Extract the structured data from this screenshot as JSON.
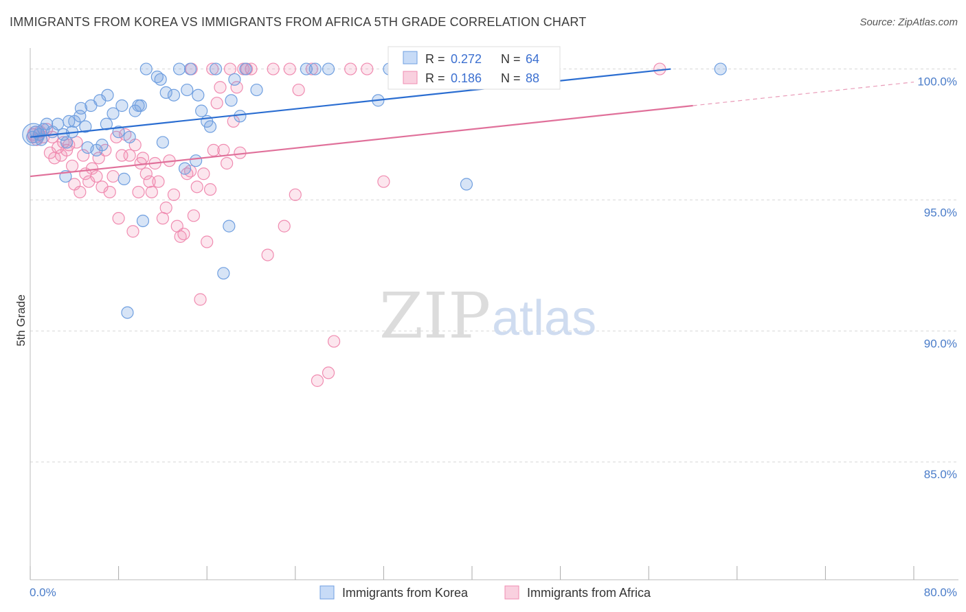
{
  "header": {
    "title": "IMMIGRANTS FROM KOREA VS IMMIGRANTS FROM AFRICA 5TH GRADE CORRELATION CHART",
    "source": "Source: ZipAtlas.com"
  },
  "watermark": {
    "zip": "ZIP",
    "atlas": "atlas"
  },
  "colors": {
    "korea": "#6f9fe0",
    "korea_line": "#2a6dd1",
    "africa": "#f08bb0",
    "africa_line": "#e0709a",
    "tick_text": "#4a7cc9",
    "grid": "#d7d7d7"
  },
  "legend_stats": [
    {
      "r_label": "R =",
      "r_value": "0.272",
      "n_label": "N =",
      "n_value": "64"
    },
    {
      "r_label": "R =",
      "r_value": "0.186",
      "n_label": "N =",
      "n_value": "88"
    }
  ],
  "chart_data": {
    "type": "scatter",
    "title": "IMMIGRANTS FROM KOREA VS IMMIGRANTS FROM AFRICA 5TH GRADE CORRELATION CHART",
    "xlabel": "",
    "ylabel": "5th Grade",
    "xlim": [
      0,
      80
    ],
    "ylim": [
      80.5,
      100.8
    ],
    "x_tick_labels": [
      "0.0%",
      "80.0%"
    ],
    "y_ticks": [
      {
        "value": 100,
        "label": "100.0%"
      },
      {
        "value": 95,
        "label": "95.0%"
      },
      {
        "value": 90,
        "label": "90.0%"
      },
      {
        "value": 85,
        "label": "85.0%"
      }
    ],
    "grid": "horizontal dashed",
    "legend_position": "bottom",
    "series": [
      {
        "name": "Immigrants from Korea",
        "r": 0.272,
        "n": 64,
        "trend": {
          "x": [
            0,
            58
          ],
          "y": [
            97.4,
            100.0
          ]
        },
        "points": [
          [
            0.2,
            97.4
          ],
          [
            0.5,
            97.6
          ],
          [
            0.8,
            97.5
          ],
          [
            1.0,
            97.3
          ],
          [
            1.2,
            97.7
          ],
          [
            1.5,
            97.9
          ],
          [
            2.0,
            97.6
          ],
          [
            2.5,
            97.9
          ],
          [
            3.0,
            97.5
          ],
          [
            3.3,
            97.2
          ],
          [
            3.5,
            98.0
          ],
          [
            3.8,
            97.6
          ],
          [
            4.0,
            98.0
          ],
          [
            4.5,
            98.2
          ],
          [
            4.6,
            98.5
          ],
          [
            5.0,
            97.8
          ],
          [
            5.2,
            97.0
          ],
          [
            5.5,
            98.6
          ],
          [
            6.0,
            96.9
          ],
          [
            6.3,
            98.8
          ],
          [
            6.5,
            97.1
          ],
          [
            6.9,
            97.9
          ],
          [
            7.0,
            99.0
          ],
          [
            7.5,
            98.3
          ],
          [
            8.0,
            97.6
          ],
          [
            8.3,
            98.6
          ],
          [
            8.5,
            95.8
          ],
          [
            9.0,
            97.4
          ],
          [
            9.5,
            98.4
          ],
          [
            9.8,
            98.6
          ],
          [
            10.0,
            98.6
          ],
          [
            10.2,
            94.2
          ],
          [
            10.5,
            100.0
          ],
          [
            11.5,
            99.7
          ],
          [
            11.8,
            99.6
          ],
          [
            12.0,
            97.2
          ],
          [
            12.3,
            99.1
          ],
          [
            13.0,
            99.0
          ],
          [
            13.5,
            100.0
          ],
          [
            14.0,
            96.2
          ],
          [
            14.2,
            99.2
          ],
          [
            14.5,
            100.0
          ],
          [
            15.0,
            96.5
          ],
          [
            15.2,
            99.0
          ],
          [
            15.5,
            98.4
          ],
          [
            16.0,
            98.0
          ],
          [
            16.3,
            97.8
          ],
          [
            16.8,
            100.0
          ],
          [
            17.5,
            92.2
          ],
          [
            18.0,
            94.0
          ],
          [
            18.2,
            98.8
          ],
          [
            18.5,
            99.6
          ],
          [
            19.0,
            98.2
          ],
          [
            19.5,
            100.0
          ],
          [
            20.5,
            99.2
          ],
          [
            25.0,
            100.0
          ],
          [
            25.8,
            100.0
          ],
          [
            27.0,
            100.0
          ],
          [
            31.5,
            98.8
          ],
          [
            32.5,
            100.0
          ],
          [
            39.5,
            95.6
          ],
          [
            62.5,
            100.0
          ],
          [
            8.8,
            90.7
          ],
          [
            3.2,
            95.9
          ]
        ]
      },
      {
        "name": "Immigrants from Africa",
        "r": 0.186,
        "n": 88,
        "trend": {
          "x": [
            0,
            60
          ],
          "y": [
            95.9,
            98.6
          ]
        },
        "points": [
          [
            0.3,
            97.5
          ],
          [
            0.6,
            97.3
          ],
          [
            0.9,
            97.6
          ],
          [
            1.2,
            97.4
          ],
          [
            1.5,
            97.7
          ],
          [
            1.8,
            96.8
          ],
          [
            2.0,
            97.4
          ],
          [
            2.2,
            96.6
          ],
          [
            2.5,
            97.0
          ],
          [
            2.8,
            96.7
          ],
          [
            3.0,
            97.2
          ],
          [
            3.3,
            96.9
          ],
          [
            3.5,
            97.1
          ],
          [
            3.8,
            96.3
          ],
          [
            4.0,
            95.6
          ],
          [
            4.2,
            97.2
          ],
          [
            4.5,
            95.3
          ],
          [
            4.8,
            96.7
          ],
          [
            5.0,
            96.0
          ],
          [
            5.3,
            95.7
          ],
          [
            5.6,
            96.2
          ],
          [
            6.0,
            95.9
          ],
          [
            6.2,
            96.6
          ],
          [
            6.5,
            95.5
          ],
          [
            6.8,
            96.9
          ],
          [
            7.2,
            95.3
          ],
          [
            7.5,
            95.9
          ],
          [
            7.8,
            97.4
          ],
          [
            8.0,
            94.3
          ],
          [
            8.3,
            96.7
          ],
          [
            8.6,
            97.5
          ],
          [
            9.0,
            96.7
          ],
          [
            9.3,
            93.8
          ],
          [
            9.5,
            97.1
          ],
          [
            9.8,
            95.3
          ],
          [
            10.0,
            96.4
          ],
          [
            10.2,
            96.6
          ],
          [
            10.5,
            96.0
          ],
          [
            10.8,
            95.7
          ],
          [
            11.0,
            95.3
          ],
          [
            11.3,
            96.4
          ],
          [
            11.6,
            95.7
          ],
          [
            12.0,
            94.3
          ],
          [
            12.3,
            94.7
          ],
          [
            12.6,
            96.5
          ],
          [
            13.0,
            95.2
          ],
          [
            13.3,
            94.0
          ],
          [
            13.6,
            93.6
          ],
          [
            13.9,
            93.7
          ],
          [
            14.2,
            96.0
          ],
          [
            14.5,
            96.1
          ],
          [
            14.8,
            94.4
          ],
          [
            15.1,
            95.5
          ],
          [
            15.4,
            91.2
          ],
          [
            15.7,
            96.0
          ],
          [
            16.0,
            93.4
          ],
          [
            16.3,
            95.4
          ],
          [
            16.6,
            96.9
          ],
          [
            16.9,
            98.7
          ],
          [
            17.2,
            99.3
          ],
          [
            17.5,
            96.9
          ],
          [
            17.8,
            96.4
          ],
          [
            18.1,
            100.0
          ],
          [
            18.4,
            98.0
          ],
          [
            18.7,
            99.3
          ],
          [
            19.0,
            96.8
          ],
          [
            19.3,
            100.0
          ],
          [
            19.6,
            100.0
          ],
          [
            20.0,
            100.0
          ],
          [
            21.5,
            92.9
          ],
          [
            22.0,
            100.0
          ],
          [
            23.0,
            94.0
          ],
          [
            23.5,
            100.0
          ],
          [
            24.0,
            95.2
          ],
          [
            24.3,
            99.2
          ],
          [
            25.5,
            100.0
          ],
          [
            26.0,
            88.1
          ],
          [
            27.0,
            88.4
          ],
          [
            27.5,
            89.6
          ],
          [
            29.0,
            100.0
          ],
          [
            30.5,
            100.0
          ],
          [
            32.0,
            95.7
          ],
          [
            34.0,
            100.0
          ],
          [
            35.0,
            100.0
          ],
          [
            36.5,
            100.0
          ],
          [
            57.0,
            100.0
          ],
          [
            16.5,
            100.0
          ],
          [
            14.6,
            100.0
          ]
        ]
      }
    ]
  },
  "legend": {
    "items": [
      {
        "label": "Immigrants from Korea"
      },
      {
        "label": "Immigrants from Africa"
      }
    ]
  }
}
